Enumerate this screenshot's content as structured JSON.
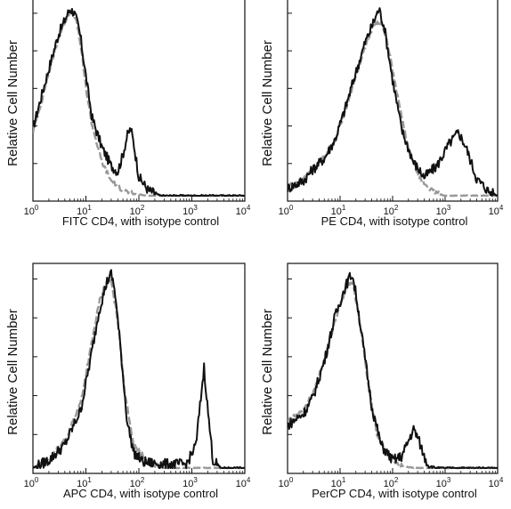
{
  "chart_data": [
    {
      "type": "line",
      "xlabel": "FITC  CD4,  with isotype control",
      "ylabel": "Relative Cell Number",
      "xscale": "log",
      "xlim": [
        1,
        10000
      ],
      "xticks": [
        {
          "base": "10",
          "exp": "0"
        },
        {
          "base": "10",
          "exp": "1"
        },
        {
          "base": "10",
          "exp": "2"
        },
        {
          "base": "10",
          "exp": "3"
        },
        {
          "base": "10",
          "exp": "4"
        }
      ],
      "series": [
        {
          "color": "#111111",
          "style": "solid",
          "points": [
            [
              1,
              0.36
            ],
            [
              1.5,
              0.55
            ],
            [
              2,
              0.68
            ],
            [
              3,
              0.86
            ],
            [
              4,
              0.94
            ],
            [
              5,
              1.0
            ],
            [
              6,
              0.98
            ],
            [
              7,
              0.92
            ],
            [
              8,
              0.84
            ],
            [
              10,
              0.64
            ],
            [
              13,
              0.42
            ],
            [
              20,
              0.26
            ],
            [
              30,
              0.16
            ],
            [
              40,
              0.13
            ],
            [
              50,
              0.22
            ],
            [
              60,
              0.32
            ],
            [
              70,
              0.36
            ],
            [
              80,
              0.28
            ],
            [
              100,
              0.1
            ],
            [
              150,
              0.03
            ],
            [
              250,
              0.0
            ]
          ]
        },
        {
          "color": "#999999",
          "style": "dashed",
          "points": [
            [
              1,
              0.34
            ],
            [
              1.5,
              0.52
            ],
            [
              2,
              0.66
            ],
            [
              3,
              0.84
            ],
            [
              4,
              0.93
            ],
            [
              5,
              0.99
            ],
            [
              6,
              0.97
            ],
            [
              7,
              0.9
            ],
            [
              8,
              0.8
            ],
            [
              10,
              0.58
            ],
            [
              13,
              0.38
            ],
            [
              20,
              0.18
            ],
            [
              30,
              0.08
            ],
            [
              50,
              0.03
            ],
            [
              80,
              0.01
            ],
            [
              150,
              0.0
            ]
          ]
        }
      ]
    },
    {
      "type": "line",
      "xlabel": "PE  CD4,  with isotype control",
      "ylabel": "Relative Cell Number",
      "xscale": "log",
      "xlim": [
        1,
        10000
      ],
      "xticks": [
        {
          "base": "10",
          "exp": "0"
        },
        {
          "base": "10",
          "exp": "1"
        },
        {
          "base": "10",
          "exp": "2"
        },
        {
          "base": "10",
          "exp": "3"
        },
        {
          "base": "10",
          "exp": "4"
        }
      ],
      "series": [
        {
          "color": "#111111",
          "style": "solid",
          "points": [
            [
              1,
              0.04
            ],
            [
              2,
              0.08
            ],
            [
              3,
              0.14
            ],
            [
              5,
              0.2
            ],
            [
              8,
              0.3
            ],
            [
              12,
              0.45
            ],
            [
              20,
              0.66
            ],
            [
              30,
              0.82
            ],
            [
              45,
              0.94
            ],
            [
              55,
              1.0
            ],
            [
              70,
              0.9
            ],
            [
              100,
              0.62
            ],
            [
              150,
              0.35
            ],
            [
              250,
              0.18
            ],
            [
              400,
              0.1
            ],
            [
              700,
              0.16
            ],
            [
              1200,
              0.28
            ],
            [
              1800,
              0.34
            ],
            [
              2500,
              0.26
            ],
            [
              4000,
              0.09
            ],
            [
              7000,
              0.02
            ],
            [
              10000,
              0.0
            ]
          ]
        },
        {
          "color": "#999999",
          "style": "dashed",
          "points": [
            [
              1,
              0.05
            ],
            [
              2,
              0.09
            ],
            [
              3,
              0.14
            ],
            [
              5,
              0.21
            ],
            [
              8,
              0.3
            ],
            [
              12,
              0.44
            ],
            [
              20,
              0.64
            ],
            [
              30,
              0.8
            ],
            [
              45,
              0.92
            ],
            [
              60,
              0.93
            ],
            [
              80,
              0.82
            ],
            [
              120,
              0.55
            ],
            [
              200,
              0.25
            ],
            [
              350,
              0.08
            ],
            [
              600,
              0.02
            ],
            [
              1000,
              0.0
            ]
          ]
        }
      ]
    },
    {
      "type": "line",
      "xlabel": "APC CD4, with isotype control",
      "ylabel": "Relative Cell Number",
      "xscale": "log",
      "xlim": [
        1,
        10000
      ],
      "xticks": [
        {
          "base": "10",
          "exp": "0"
        },
        {
          "base": "10",
          "exp": "1"
        },
        {
          "base": "10",
          "exp": "2"
        },
        {
          "base": "10",
          "exp": "3"
        },
        {
          "base": "10",
          "exp": "4"
        }
      ],
      "series": [
        {
          "color": "#111111",
          "style": "solid",
          "points": [
            [
              1,
              0.0
            ],
            [
              2,
              0.04
            ],
            [
              4,
              0.12
            ],
            [
              8,
              0.3
            ],
            [
              12,
              0.55
            ],
            [
              18,
              0.82
            ],
            [
              25,
              0.96
            ],
            [
              30,
              1.0
            ],
            [
              35,
              0.92
            ],
            [
              45,
              0.62
            ],
            [
              60,
              0.24
            ],
            [
              80,
              0.08
            ],
            [
              120,
              0.03
            ],
            [
              300,
              0.02
            ],
            [
              800,
              0.02
            ],
            [
              1200,
              0.12
            ],
            [
              1500,
              0.38
            ],
            [
              1700,
              0.52
            ],
            [
              2000,
              0.3
            ],
            [
              2500,
              0.04
            ],
            [
              3500,
              0.0
            ],
            [
              10000,
              0.0
            ]
          ]
        },
        {
          "color": "#999999",
          "style": "dashed",
          "points": [
            [
              1,
              0.0
            ],
            [
              2,
              0.05
            ],
            [
              4,
              0.14
            ],
            [
              8,
              0.34
            ],
            [
              12,
              0.6
            ],
            [
              18,
              0.86
            ],
            [
              25,
              0.97
            ],
            [
              30,
              0.96
            ],
            [
              40,
              0.76
            ],
            [
              55,
              0.38
            ],
            [
              80,
              0.12
            ],
            [
              150,
              0.03
            ],
            [
              300,
              0.0
            ],
            [
              600,
              0.0
            ]
          ]
        }
      ]
    },
    {
      "type": "line",
      "xlabel": "PerCP CD4, with isotype control",
      "ylabel": "Relative Cell Number",
      "xscale": "log",
      "xlim": [
        1,
        10000
      ],
      "xticks": [
        {
          "base": "10",
          "exp": "0"
        },
        {
          "base": "10",
          "exp": "1"
        },
        {
          "base": "10",
          "exp": "2"
        },
        {
          "base": "10",
          "exp": "3"
        },
        {
          "base": "10",
          "exp": "4"
        }
      ],
      "series": [
        {
          "color": "#111111",
          "style": "solid",
          "points": [
            [
              1,
              0.22
            ],
            [
              2,
              0.28
            ],
            [
              3,
              0.36
            ],
            [
              5,
              0.55
            ],
            [
              8,
              0.78
            ],
            [
              12,
              0.92
            ],
            [
              15,
              0.98
            ],
            [
              17,
              1.0
            ],
            [
              20,
              0.9
            ],
            [
              28,
              0.62
            ],
            [
              40,
              0.32
            ],
            [
              60,
              0.12
            ],
            [
              100,
              0.04
            ],
            [
              150,
              0.06
            ],
            [
              200,
              0.14
            ],
            [
              250,
              0.2
            ],
            [
              300,
              0.16
            ],
            [
              400,
              0.06
            ],
            [
              500,
              0.01
            ],
            [
              700,
              0.0
            ]
          ]
        },
        {
          "color": "#999999",
          "style": "dashed",
          "points": [
            [
              1,
              0.24
            ],
            [
              2,
              0.3
            ],
            [
              3,
              0.38
            ],
            [
              5,
              0.56
            ],
            [
              8,
              0.76
            ],
            [
              12,
              0.9
            ],
            [
              15,
              0.96
            ],
            [
              18,
              0.94
            ],
            [
              25,
              0.72
            ],
            [
              35,
              0.42
            ],
            [
              50,
              0.18
            ],
            [
              80,
              0.06
            ],
            [
              150,
              0.01
            ],
            [
              300,
              0.0
            ]
          ]
        }
      ]
    }
  ]
}
